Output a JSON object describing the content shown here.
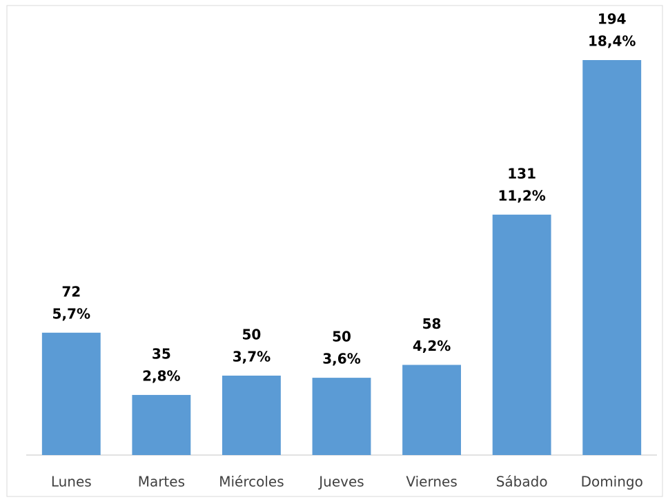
{
  "chart_data": {
    "type": "bar",
    "categories": [
      "Lunes",
      "Martes",
      "Miércoles",
      "Jueves",
      "Viernes",
      "Sábado",
      "Domingo"
    ],
    "values": [
      5.7,
      2.8,
      3.7,
      3.6,
      4.2,
      11.2,
      18.4
    ],
    "value_labels": [
      "5,7%",
      "2,8%",
      "3,7%",
      "3,6%",
      "4,2%",
      "11,2%",
      "18,4%"
    ],
    "counts": [
      72,
      35,
      50,
      50,
      58,
      131,
      194
    ],
    "color": "#5b9bd5"
  }
}
